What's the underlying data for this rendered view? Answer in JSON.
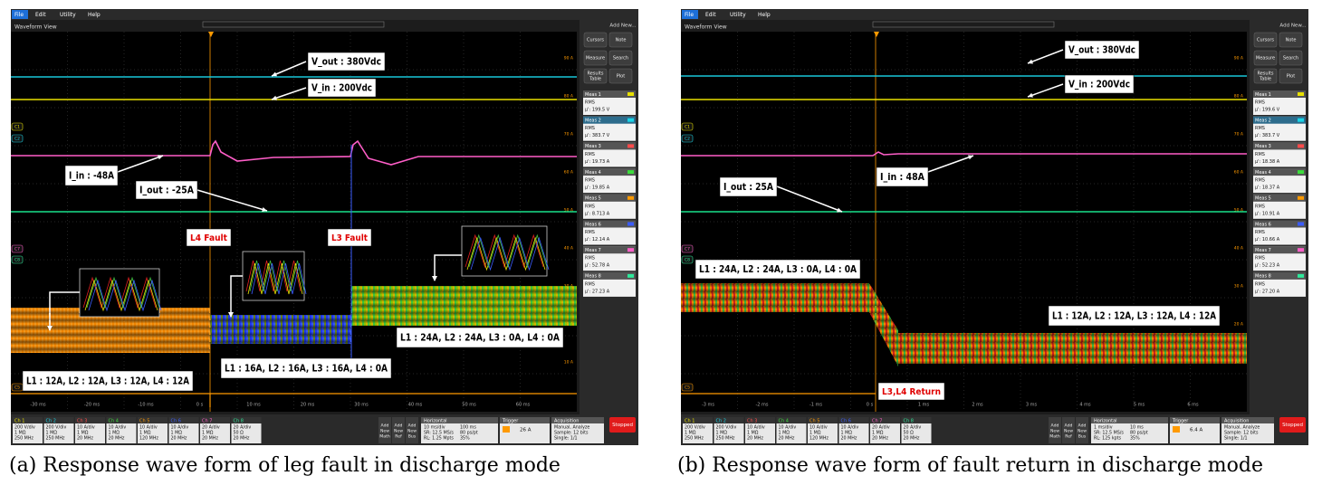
{
  "panels": [
    {
      "menu": [
        "File",
        "Edit",
        "Utility",
        "Help"
      ],
      "view_title": "Waveform View",
      "add_new": "Add New...",
      "buttons": [
        [
          "Cursors"
        ],
        [
          "Note"
        ],
        [
          "Measure"
        ],
        [
          "Search"
        ],
        [
          "Results",
          "Table"
        ],
        [
          "Plot"
        ]
      ],
      "measurements": [
        {
          "label": "Meas 1",
          "type": "RMS",
          "value": "μ': 199.5 V"
        },
        {
          "label": "Meas 2",
          "type": "RMS",
          "value": "μ': 383.7 V"
        },
        {
          "label": "Meas 3",
          "type": "RMS",
          "value": "μ': 19.73 A"
        },
        {
          "label": "Meas 4",
          "type": "RMS",
          "value": "μ': 19.85 A"
        },
        {
          "label": "Meas 5",
          "type": "RMS",
          "value": "μ': 8.713 A"
        },
        {
          "label": "Meas 6",
          "type": "RMS",
          "value": "μ': 12.14 A"
        },
        {
          "label": "Meas 7",
          "type": "RMS",
          "value": "μ': 52.78 A"
        },
        {
          "label": "Meas 8",
          "type": "RMS",
          "value": "μ': 27.23 A"
        }
      ],
      "time_labels": [
        "-30 ms",
        "-20 ms",
        "-10 ms",
        "0 s",
        "10 ms",
        "20 ms",
        "30 ms",
        "40 ms",
        "50 ms",
        "60 ms"
      ],
      "scale_labels": [
        "90 A",
        "80 A",
        "70 A",
        "60 A",
        "50 A",
        "40 A",
        "30 A",
        "20 A",
        "10 A"
      ],
      "channel_markers": [
        "C1",
        "C2",
        "C7",
        "C8",
        "C5"
      ],
      "annotations": [
        "V_out : 380Vdc",
        "V_in : 200Vdc",
        "I_in : -48A",
        "I_out : -25A",
        "L4 Fault",
        "L3 Fault",
        "L1 : 12A, L2 : 12A, L3 : 12A, L4 : 12A",
        "L1 : 16A, L2 : 16A, L3 : 16A, L4 : 0A",
        "L1 : 24A, L2 : 24A, L3 : 0A, L4 : 0A"
      ],
      "channels": [
        {
          "name": "Ch 1",
          "lines": [
            "200 V/div",
            "1 MΩ",
            "250 MHz"
          ]
        },
        {
          "name": "Ch 2",
          "lines": [
            "200 V/div",
            "1 MΩ",
            "250 MHz"
          ]
        },
        {
          "name": "Ch 3",
          "lines": [
            "10 A/div",
            "1 MΩ",
            "20 MHz"
          ]
        },
        {
          "name": "Ch 4",
          "lines": [
            "10 A/div",
            "1 MΩ",
            "20 MHz"
          ]
        },
        {
          "name": "Ch 5",
          "lines": [
            "10 A/div",
            "1 MΩ",
            "120 MHz"
          ]
        },
        {
          "name": "Ch 6",
          "lines": [
            "10 A/div",
            "1 MΩ",
            "20 MHz"
          ]
        },
        {
          "name": "Ch 7",
          "lines": [
            "20 A/div",
            "1 MΩ",
            "20 MHz"
          ]
        },
        {
          "name": "Ch 8",
          "lines": [
            "20 A/div",
            "50 Ω",
            "20 MHz"
          ]
        }
      ],
      "add_new_items": [
        [
          "Add",
          "New",
          "Math"
        ],
        [
          "Add",
          "New",
          "Ref"
        ],
        [
          "Add",
          "New",
          "Bus"
        ]
      ],
      "horizontal": {
        "title": "Horizontal",
        "lines": [
          "10 ms/div",
          "100 ms",
          "SR: 12.5 MS/s",
          "80 ps/pt",
          "RL: 1.25 Mpts",
          "35%"
        ]
      },
      "trigger": {
        "title": "Trigger",
        "value": "26 A"
      },
      "acquisition": {
        "title": "Acquisition",
        "lines": [
          "Manual,   Analyze",
          "Sample: 12 bits",
          "Single: 1/1"
        ]
      },
      "status": "Stopped",
      "caption": "(a) Response wave form of leg fault in discharge mode"
    },
    {
      "menu": [
        "File",
        "Edit",
        "Utility",
        "Help"
      ],
      "view_title": "Waveform View",
      "add_new": "Add New...",
      "buttons": [
        [
          "Cursors"
        ],
        [
          "Note"
        ],
        [
          "Measure"
        ],
        [
          "Search"
        ],
        [
          "Results",
          "Table"
        ],
        [
          "Plot"
        ]
      ],
      "measurements": [
        {
          "label": "Meas 1",
          "type": "RMS",
          "value": "μ': 199.6 V"
        },
        {
          "label": "Meas 2",
          "type": "RMS",
          "value": "μ': 383.7 V"
        },
        {
          "label": "Meas 3",
          "type": "RMS",
          "value": "μ': 18.38 A"
        },
        {
          "label": "Meas 4",
          "type": "RMS",
          "value": "μ': 18.37 A"
        },
        {
          "label": "Meas 5",
          "type": "RMS",
          "value": "μ': 10.91 A"
        },
        {
          "label": "Meas 6",
          "type": "RMS",
          "value": "μ': 10.66 A"
        },
        {
          "label": "Meas 7",
          "type": "RMS",
          "value": "μ': 52.23 A"
        },
        {
          "label": "Meas 8",
          "type": "RMS",
          "value": "μ': 27.20 A"
        }
      ],
      "time_labels": [
        "-3 ms",
        "-2 ms",
        "-1 ms",
        "0 s",
        "1 ms",
        "2 ms",
        "3 ms",
        "4 ms",
        "5 ms",
        "6 ms"
      ],
      "scale_labels": [
        "90 A",
        "80 A",
        "70 A",
        "60 A",
        "50 A",
        "40 A",
        "30 A",
        "20 A",
        "10 A"
      ],
      "channel_markers": [
        "C1",
        "C2",
        "C7",
        "C8",
        "C5"
      ],
      "annotations": [
        "V_out : 380Vdc",
        "V_in : 200Vdc",
        "I_in : 48A",
        "I_out : 25A",
        "L1 : 24A, L2 : 24A, L3 : 0A, L4 : 0A",
        "L1 : 12A, L2 : 12A, L3 : 12A, L4 : 12A",
        "L3,L4 Return"
      ],
      "channels": [
        {
          "name": "Ch 1",
          "lines": [
            "200 V/div",
            "1 MΩ",
            "250 MHz"
          ]
        },
        {
          "name": "Ch 2",
          "lines": [
            "200 V/div",
            "1 MΩ",
            "250 MHz"
          ]
        },
        {
          "name": "Ch 3",
          "lines": [
            "10 A/div",
            "1 MΩ",
            "20 MHz"
          ]
        },
        {
          "name": "Ch 4",
          "lines": [
            "10 A/div",
            "1 MΩ",
            "20 MHz"
          ]
        },
        {
          "name": "Ch 5",
          "lines": [
            "10 A/div",
            "1 MΩ",
            "120 MHz"
          ]
        },
        {
          "name": "Ch 6",
          "lines": [
            "10 A/div",
            "1 MΩ",
            "20 MHz"
          ]
        },
        {
          "name": "Ch 7",
          "lines": [
            "20 A/div",
            "1 MΩ",
            "20 MHz"
          ]
        },
        {
          "name": "Ch 8",
          "lines": [
            "20 A/div",
            "50 Ω",
            "20 MHz"
          ]
        }
      ],
      "add_new_items": [
        [
          "Add",
          "New",
          "Math"
        ],
        [
          "Add",
          "New",
          "Ref"
        ],
        [
          "Add",
          "New",
          "Bus"
        ]
      ],
      "horizontal": {
        "title": "Horizontal",
        "lines": [
          "1 ms/div",
          "10 ms",
          "SR: 12.5 MS/s",
          "80 ps/pt",
          "RL: 125 kpts",
          "35%"
        ]
      },
      "trigger": {
        "title": "Trigger",
        "value": "6.4 A"
      },
      "acquisition": {
        "title": "Acquisition",
        "lines": [
          "Manual,   Analyze",
          "Sample: 12 bits",
          "Single: 1/1"
        ]
      },
      "status": "Stopped",
      "caption": "(b) Response wave form of fault return in discharge mode"
    }
  ]
}
